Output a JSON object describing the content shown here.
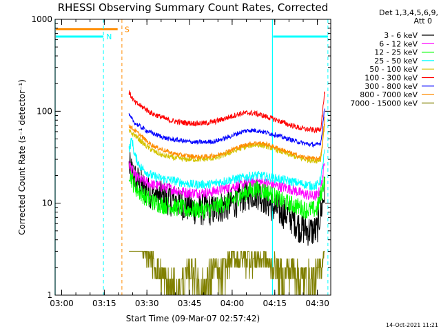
{
  "chart_data": {
    "type": "line",
    "title": "RHESSI Observing Summary Count Rates, Corrected",
    "xlabel": "Start Time (09-Mar-07 02:57:42)",
    "ylabel": "Corrected Count Rate (s⁻¹ detector⁻¹)",
    "x_units": "minutes after 02:57:42",
    "xlim": [
      0,
      97
    ],
    "ylim": [
      1,
      1000
    ],
    "yscale": "log",
    "x_ticks": [
      "03:00",
      "03:15",
      "03:30",
      "03:45",
      "04:00",
      "04:15",
      "04:30"
    ],
    "y_ticks": [
      "1",
      "10",
      "100",
      "1000"
    ],
    "legend_position": "right",
    "legend_header": [
      "Det 1,3,4,5,6,9,",
      "Att 0"
    ],
    "series": [
      {
        "name": "3 - 6 keV",
        "color": "#000000",
        "x": [
          26,
          28,
          30,
          32,
          34,
          36,
          38,
          40,
          42,
          44,
          46,
          48,
          50,
          52,
          54,
          56,
          58,
          60,
          62,
          64,
          66,
          68,
          70,
          72,
          74,
          76,
          78,
          80,
          82,
          84,
          86,
          88,
          90,
          92,
          93.5,
          95
        ],
        "y": [
          25,
          19,
          16,
          14,
          13,
          12,
          11.5,
          11,
          10.5,
          10,
          9.5,
          9,
          8.5,
          8.5,
          8.5,
          8.5,
          9,
          9.5,
          10,
          10.5,
          11.5,
          12.5,
          13,
          12.5,
          11,
          9.5,
          8.5,
          8,
          7.5,
          6.5,
          5.5,
          5.2,
          5,
          5,
          8,
          14
        ]
      },
      {
        "name": "6 - 12 keV",
        "color": "#ff00ff",
        "x": [
          26,
          28,
          30,
          32,
          34,
          36,
          38,
          40,
          42,
          44,
          46,
          48,
          50,
          52,
          54,
          56,
          58,
          60,
          62,
          64,
          66,
          68,
          70,
          72,
          74,
          76,
          78,
          80,
          82,
          84,
          86,
          88,
          90,
          92,
          93.5,
          95
        ],
        "y": [
          27,
          20,
          18,
          17,
          16,
          15.5,
          15,
          14.5,
          14,
          13.5,
          13,
          13,
          13,
          13,
          13,
          13.5,
          14,
          14.5,
          15,
          15.5,
          16,
          16.5,
          17,
          17,
          16.5,
          16,
          15.5,
          15,
          14.5,
          14,
          13,
          12.5,
          12,
          12,
          14,
          30
        ]
      },
      {
        "name": "12 - 25 keV",
        "color": "#00ff00",
        "x": [
          26,
          28,
          30,
          32,
          34,
          36,
          38,
          40,
          42,
          44,
          46,
          48,
          50,
          52,
          54,
          56,
          58,
          60,
          62,
          64,
          66,
          68,
          70,
          72,
          74,
          76,
          78,
          80,
          82,
          84,
          86,
          88,
          90,
          92,
          93.5,
          95
        ],
        "y": [
          22,
          15,
          13,
          11.5,
          10.5,
          10,
          9.5,
          9.5,
          9,
          9,
          8.5,
          8.5,
          8.5,
          8.5,
          8.5,
          9,
          9.5,
          10,
          10.5,
          11.5,
          12.5,
          13.5,
          14,
          14,
          13.5,
          12.5,
          11.5,
          10.5,
          10,
          9.5,
          9,
          8.5,
          8.5,
          8.5,
          12,
          20
        ]
      },
      {
        "name": "25 - 50 keV",
        "color": "#00ffff",
        "x": [
          26,
          27,
          28,
          30,
          32,
          34,
          36,
          38,
          40,
          42,
          44,
          46,
          48,
          50,
          52,
          54,
          56,
          58,
          60,
          62,
          64,
          66,
          68,
          70,
          72,
          74,
          76,
          78,
          80,
          82,
          84,
          86,
          88,
          90,
          92,
          93.5,
          95
        ],
        "y": [
          38,
          50,
          33,
          25,
          22,
          20,
          19,
          18.5,
          18,
          17.5,
          17,
          16.5,
          16,
          16,
          16,
          16,
          16.5,
          17,
          17.5,
          18,
          18.5,
          19,
          19.5,
          20,
          20,
          19.5,
          19,
          18.5,
          18,
          17.5,
          17,
          16.5,
          16,
          15.5,
          15.5,
          18,
          40
        ]
      },
      {
        "name": "50 - 100 keV",
        "color": "#d4c400",
        "x": [
          26,
          28,
          30,
          32,
          34,
          36,
          38,
          40,
          42,
          44,
          46,
          48,
          50,
          52,
          54,
          56,
          58,
          60,
          62,
          64,
          66,
          68,
          70,
          72,
          74,
          76,
          78,
          80,
          82,
          84,
          86,
          88,
          90,
          92,
          93.5,
          95
        ],
        "y": [
          60,
          55,
          48,
          42,
          38,
          35,
          33,
          32,
          31,
          30.5,
          30,
          30,
          30,
          30,
          30.5,
          31,
          32,
          34,
          36,
          38,
          40,
          42,
          43,
          43,
          42,
          40,
          38,
          36,
          34,
          32.5,
          31,
          30,
          29.5,
          29,
          30,
          80
        ]
      },
      {
        "name": "100 - 300 keV",
        "color": "#ff0000",
        "x": [
          26,
          28,
          30,
          32,
          34,
          36,
          38,
          40,
          42,
          44,
          46,
          48,
          50,
          52,
          54,
          56,
          58,
          60,
          62,
          64,
          66,
          68,
          70,
          72,
          74,
          76,
          78,
          80,
          82,
          84,
          86,
          88,
          90,
          92,
          93.5,
          95
        ],
        "y": [
          160,
          125,
          115,
          105,
          95,
          90,
          85,
          80,
          78,
          76,
          75,
          74,
          74,
          74,
          75,
          77,
          80,
          84,
          88,
          92,
          95,
          96,
          95,
          92,
          88,
          84,
          80,
          76,
          72,
          69,
          66,
          64,
          63,
          62,
          65,
          180
        ]
      },
      {
        "name": "300 - 800 keV",
        "color": "#0000ff",
        "x": [
          26,
          28,
          30,
          32,
          34,
          36,
          38,
          40,
          42,
          44,
          46,
          48,
          50,
          52,
          54,
          56,
          58,
          60,
          62,
          64,
          66,
          68,
          70,
          72,
          74,
          76,
          78,
          80,
          82,
          84,
          86,
          88,
          90,
          92,
          93.5,
          95
        ],
        "y": [
          90,
          75,
          68,
          62,
          58,
          55,
          52,
          50,
          49,
          48,
          47,
          46.5,
          46,
          46,
          46.5,
          47,
          49,
          51,
          54,
          57,
          60,
          62,
          62,
          61,
          59,
          57,
          55,
          52,
          50,
          48,
          46,
          44.5,
          43.5,
          43,
          45,
          120
        ]
      },
      {
        "name": "800 - 7000 keV",
        "color": "#ff8c00",
        "x": [
          26,
          28,
          30,
          32,
          34,
          36,
          38,
          40,
          42,
          44,
          46,
          48,
          50,
          52,
          54,
          56,
          58,
          60,
          62,
          64,
          66,
          68,
          70,
          72,
          74,
          76,
          78,
          80,
          82,
          84,
          86,
          88,
          90,
          92,
          93.5,
          95
        ],
        "y": [
          70,
          62,
          55,
          48,
          43,
          40,
          38,
          36,
          34.5,
          33.5,
          33,
          32.5,
          32,
          32,
          32.5,
          33,
          34,
          36,
          38,
          40,
          42,
          44,
          45,
          45,
          44,
          42,
          40,
          38,
          36,
          34,
          32.5,
          31.5,
          31,
          30,
          32,
          90
        ]
      },
      {
        "name": "7000 - 15000 keV",
        "color": "#808000",
        "x": [
          26,
          28,
          30,
          32,
          34,
          36,
          38,
          40,
          42,
          44,
          46,
          48,
          50,
          52,
          54,
          56,
          58,
          60,
          62,
          64,
          66,
          68,
          70,
          72,
          74,
          76,
          78,
          80,
          82,
          84,
          86,
          88,
          90,
          92,
          93.5,
          95
        ],
        "y": [
          4,
          4,
          3.5,
          3,
          2.5,
          2,
          1.5,
          1.2,
          1,
          1,
          1.5,
          2,
          1.5,
          1,
          1.5,
          2,
          1.5,
          2,
          2.5,
          2.5,
          2.5,
          2.5,
          2.5,
          2.5,
          2.5,
          2,
          2,
          1.5,
          2,
          2,
          1.5,
          1.5,
          1.5,
          1.5,
          2,
          4
        ]
      }
    ],
    "annotations": [
      {
        "label": "S",
        "color": "#ff8c00",
        "bar_x": [
          0,
          22
        ],
        "bar_y": 780,
        "dash_x": 23.5
      },
      {
        "label": "N",
        "color": "#00ffff",
        "bar_x": [
          0,
          17
        ],
        "bar_y": 650,
        "dash_x": 17
      },
      {
        "label": "",
        "color": "#00ffff",
        "bar_x": [
          76.5,
          96
        ],
        "bar_y": 650,
        "dash_x": 96
      }
    ],
    "vlines": [
      {
        "x": 0,
        "color": "#00ffff",
        "style": "solid"
      },
      {
        "x": 76.5,
        "color": "#00ffff",
        "style": "solid"
      }
    ]
  },
  "footer": {
    "timestamp": "14-Oct-2021 11:21"
  }
}
